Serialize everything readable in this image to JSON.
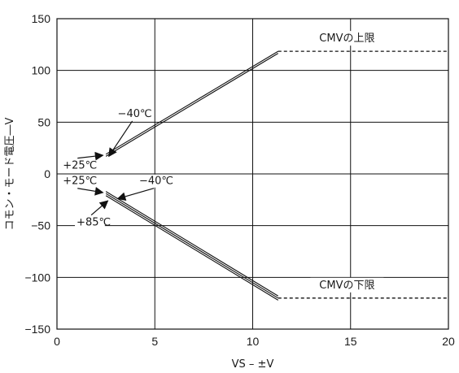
{
  "chart_data": {
    "type": "line",
    "xlabel": "VS – ±V",
    "ylabel": "コモン・モード電圧―V",
    "xlim": [
      0,
      20
    ],
    "ylim": [
      -150,
      150
    ],
    "x_ticks": [
      0,
      5,
      10,
      15,
      20
    ],
    "y_ticks": [
      -150,
      -100,
      -50,
      0,
      50,
      100,
      150
    ],
    "grid": true,
    "series": [
      {
        "name": "+25℃",
        "group": "upper",
        "x": [
          2.5,
          11.3
        ],
        "y": [
          19,
          118.5
        ]
      },
      {
        "name": "−40℃",
        "group": "upper",
        "x": [
          2.5,
          11.3
        ],
        "y": [
          17,
          116.5
        ]
      },
      {
        "name": "+25℃",
        "group": "lower",
        "x": [
          2.5,
          11.3
        ],
        "y": [
          -17,
          -118
        ]
      },
      {
        "name": "−40℃",
        "group": "lower",
        "x": [
          2.5,
          11.3
        ],
        "y": [
          -19,
          -120
        ]
      },
      {
        "name": "+85℃",
        "group": "lower",
        "x": [
          2.5,
          11.3
        ],
        "y": [
          -21,
          -122
        ]
      }
    ],
    "limits": [
      {
        "label": "CMVの上限",
        "y": 118.5,
        "x_from": 11.3,
        "x_to": 20
      },
      {
        "label": "CMVの下限",
        "y": -120,
        "x_from": 11.3,
        "x_to": 20
      }
    ],
    "annotations": [
      {
        "text": "−40℃",
        "text_at": [
          3.1,
          55
        ],
        "arrow_to": [
          2.65,
          17
        ]
      },
      {
        "text": "+25℃",
        "text_at": [
          0.3,
          5
        ],
        "arrow_to": [
          2.35,
          18
        ]
      },
      {
        "text": "+25℃",
        "text_at": [
          0.3,
          -10
        ],
        "arrow_to": [
          2.35,
          -18
        ]
      },
      {
        "text": "−40℃",
        "text_at": [
          4.2,
          -10
        ],
        "arrow_to": [
          3.1,
          -24
        ]
      },
      {
        "text": "+85℃",
        "text_at": [
          1.0,
          -50
        ],
        "arrow_to": [
          2.6,
          -26
        ]
      }
    ]
  }
}
